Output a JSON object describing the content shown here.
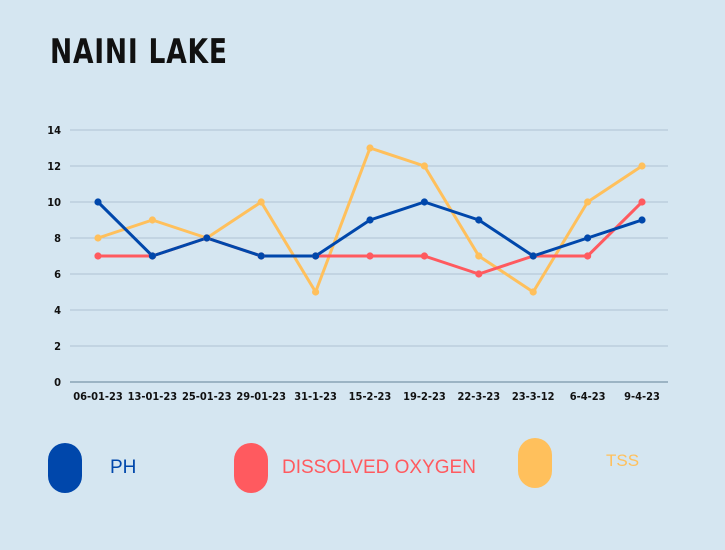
{
  "title": "NAINI LAKE",
  "chart_data": {
    "type": "line",
    "title": "NAINI LAKE",
    "categories": [
      "06-01-23",
      "13-01-23",
      "25-01-23",
      "29-01-23",
      "31-1-23",
      "15-2-23",
      "19-2-23",
      "22-3-23",
      "23-3-12",
      "6-4-23",
      "9-4-23"
    ],
    "y_ticks": [
      "0",
      "2",
      "4",
      "6",
      "8",
      "10",
      "12",
      "14"
    ],
    "ylim": [
      0,
      14
    ],
    "grid": true,
    "legend_position": "bottom",
    "series": [
      {
        "name": "PH",
        "color": "#0047ab",
        "values": [
          10,
          7,
          8,
          7,
          7,
          9,
          10,
          9,
          7,
          8,
          9
        ]
      },
      {
        "name": "DISSOLVED OXYGEN",
        "color": "#ff5a5f",
        "values": [
          7,
          7,
          8,
          7,
          7,
          7,
          7,
          6,
          7,
          7,
          10
        ]
      },
      {
        "name": "TSS",
        "color": "#ffc05c",
        "values": [
          8,
          9,
          8,
          10,
          5,
          13,
          12,
          7,
          5,
          10,
          12
        ]
      }
    ]
  },
  "legend": [
    {
      "label": "PH",
      "color": "#0047ab"
    },
    {
      "label": "DISSOLVED OXYGEN",
      "color": "#ff5a5f"
    },
    {
      "label": "TSS",
      "color": "#ffc05c"
    }
  ]
}
